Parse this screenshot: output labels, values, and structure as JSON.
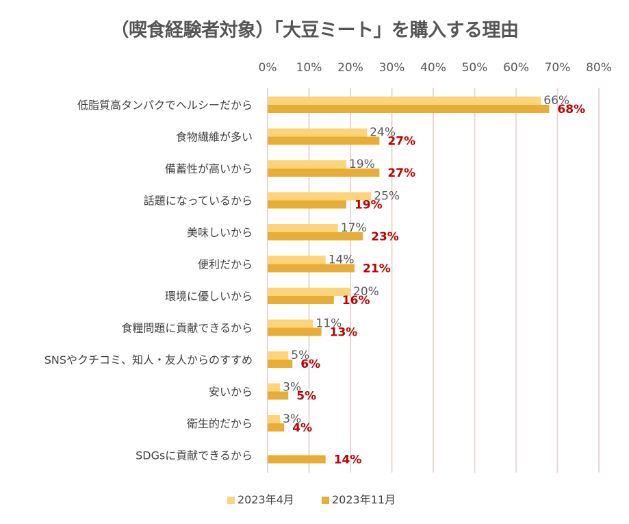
{
  "chart_data": {
    "type": "bar",
    "orientation": "horizontal",
    "title": "（喫食経験者対象）「大豆ミート」を購入する理由",
    "xlabel": "",
    "ylabel": "",
    "xlim": [
      0,
      80
    ],
    "x_ticks": [
      "0%",
      "10%",
      "20%",
      "30%",
      "40%",
      "50%",
      "60%",
      "70%",
      "80%"
    ],
    "x_tick_values": [
      0,
      10,
      20,
      30,
      40,
      50,
      60,
      70,
      80
    ],
    "grid": true,
    "axis_position": "top",
    "legend_position": "bottom",
    "categories": [
      "低脂質高タンパクでヘルシーだから",
      "食物繊維が多い",
      "備蓄性が高いから",
      "話題になっているから",
      "美味しいから",
      "便利だから",
      "環境に優しいから",
      "食糧問題に貢献できるから",
      "SNSやクチコミ、知人・友人からのすすめ",
      "安いから",
      "衛生的だから",
      "SDGsに貢献できるから"
    ],
    "series": [
      {
        "name": "2023年4月",
        "color": "#FDD47A",
        "label_color": "#595959",
        "values": [
          66,
          24,
          19,
          25,
          17,
          14,
          20,
          11,
          5,
          3,
          3,
          null
        ],
        "labels": [
          "66%",
          "24%",
          "19%",
          "25%",
          "17%",
          "14%",
          "20%",
          "11%",
          "5%",
          "3%",
          "3%",
          ""
        ]
      },
      {
        "name": "2023年11月",
        "color": "#E8AD36",
        "label_color": "#C00000",
        "values": [
          68,
          27,
          27,
          19,
          23,
          21,
          16,
          13,
          6,
          5,
          4,
          14
        ],
        "labels": [
          "68%",
          "27%",
          "27%",
          "19%",
          "23%",
          "21%",
          "16%",
          "13%",
          "6%",
          "5%",
          "4%",
          "14%"
        ]
      }
    ],
    "gridline_color": "#E8D8D4"
  }
}
